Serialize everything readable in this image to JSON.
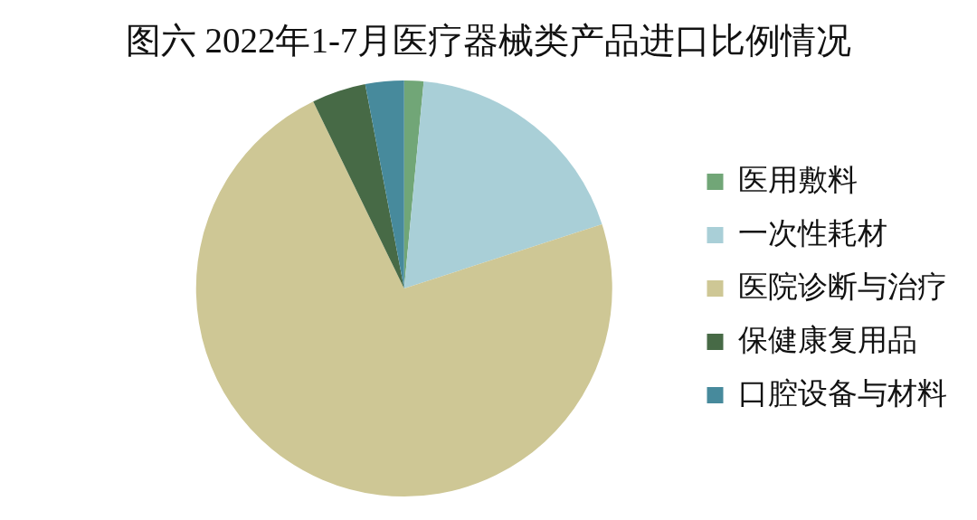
{
  "chart_data": {
    "type": "pie",
    "title": "图六 2022年1-7月医疗器械类产品进口比例情况",
    "categories": [
      "医用敷料",
      "一次性耗材",
      "医院诊断与治疗",
      "保健康复用品",
      "口腔设备与材料"
    ],
    "values": [
      1.5,
      18.5,
      72.8,
      4.2,
      3.0
    ],
    "colors": [
      "#71a677",
      "#a9cfd7",
      "#cec795",
      "#476a46",
      "#478a9c"
    ],
    "legend": "right"
  }
}
